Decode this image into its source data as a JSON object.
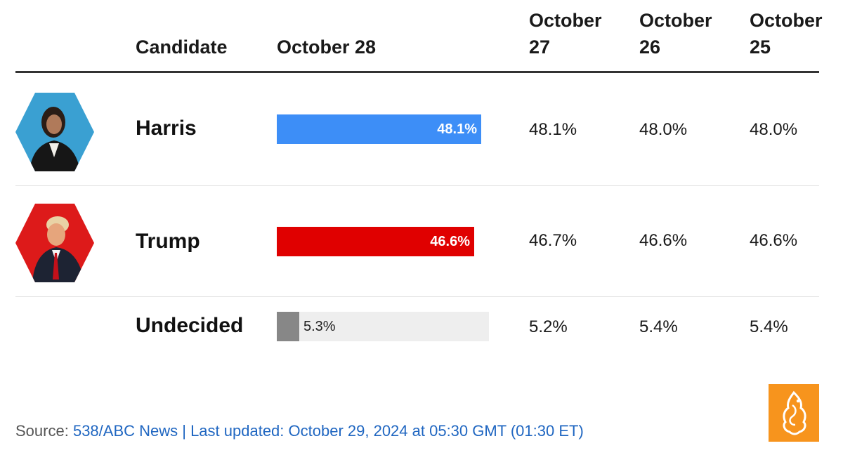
{
  "chart_data": {
    "type": "table",
    "columns": [
      "Candidate",
      "October 28",
      "October 27",
      "October 26",
      "October 25"
    ],
    "rows": [
      {
        "candidate": "Harris",
        "values": [
          "48.1%",
          "48.1%",
          "48.0%",
          "48.0%"
        ],
        "bar_value": 48.1,
        "bar_color": "#3d8ef7"
      },
      {
        "candidate": "Trump",
        "values": [
          "46.6%",
          "46.7%",
          "46.6%",
          "46.6%"
        ],
        "bar_value": 46.6,
        "bar_color": "#e00000"
      },
      {
        "candidate": "Undecided",
        "values": [
          "5.3%",
          "5.2%",
          "5.4%",
          "5.4%"
        ],
        "bar_value": 5.3,
        "bar_color": "#878787"
      }
    ],
    "bar_max": 50
  },
  "headers": {
    "candidate": "Candidate",
    "col1": "October 28",
    "col2": "October 27",
    "col3": "October 26",
    "col4": "October 25"
  },
  "footer": {
    "source_label": "Source:",
    "source_text": "538/ABC News | Last updated: October 29, 2024 at 05:30 GMT (01:30 ET)"
  },
  "colors": {
    "harris_bg": "#3aa0d2",
    "trump_bg": "#dd1a1a",
    "logo_bg": "#f7941d"
  }
}
